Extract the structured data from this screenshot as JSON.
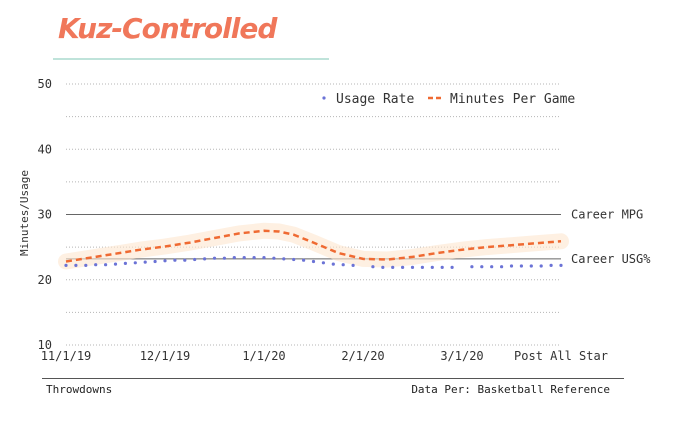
{
  "header": {
    "title": "Kuz-Controlled"
  },
  "footer": {
    "left": "Throwdowns",
    "right": "Data Per: Basketball Reference"
  },
  "colors": {
    "title": "#f0775a",
    "usage": "#6b73d6",
    "minutes": "#ef6a32",
    "reference": "#666666"
  },
  "chart_data": {
    "type": "line",
    "ylabel": "Minutes/Usage",
    "ylim": [
      10,
      50
    ],
    "yticks": [
      10,
      20,
      30,
      40,
      50
    ],
    "xlim": [
      0,
      10
    ],
    "xticks": [
      {
        "x": 0,
        "label": "11/1/19"
      },
      {
        "x": 2,
        "label": "12/1/19"
      },
      {
        "x": 4,
        "label": "1/1/20"
      },
      {
        "x": 6,
        "label": "2/1/20"
      },
      {
        "x": 8,
        "label": "3/1/20"
      },
      {
        "x": 10,
        "label": "Post All Star"
      }
    ],
    "legend_position": "top-right",
    "grid": true,
    "series": [
      {
        "name": "Usage Rate",
        "style": "dotted",
        "x": [
          0,
          0.2,
          0.4,
          0.6,
          0.8,
          1.0,
          1.2,
          1.4,
          1.6,
          1.8,
          2.0,
          2.2,
          2.4,
          2.6,
          2.8,
          3.0,
          3.2,
          3.4,
          3.6,
          3.8,
          4.0,
          4.2,
          4.4,
          4.6,
          4.8,
          5.0,
          5.2,
          5.4,
          5.6,
          5.8,
          6.2,
          6.4,
          6.6,
          6.8,
          7.0,
          7.2,
          7.4,
          7.6,
          7.8,
          8.2,
          8.4,
          8.6,
          8.8,
          9.0,
          9.2,
          9.4,
          9.6,
          9.8,
          10.0
        ],
        "values": [
          22.2,
          22.2,
          22.2,
          22.3,
          22.3,
          22.4,
          22.5,
          22.6,
          22.7,
          22.8,
          22.9,
          23.0,
          23.0,
          23.1,
          23.2,
          23.3,
          23.3,
          23.4,
          23.4,
          23.4,
          23.4,
          23.3,
          23.2,
          23.1,
          23.0,
          22.8,
          22.6,
          22.4,
          22.3,
          22.2,
          22.0,
          21.9,
          21.9,
          21.9,
          21.9,
          21.9,
          21.9,
          21.9,
          21.9,
          22.0,
          22.0,
          22.0,
          22.0,
          22.1,
          22.1,
          22.1,
          22.1,
          22.2,
          22.2
        ]
      },
      {
        "name": "Minutes Per Game",
        "style": "dashed",
        "x": [
          0,
          0.5,
          1,
          1.5,
          2,
          2.5,
          3,
          3.5,
          4,
          4.3,
          4.6,
          5,
          5.5,
          6,
          6.5,
          7,
          7.5,
          8,
          8.5,
          9,
          9.5,
          10
        ],
        "values": [
          22.8,
          23.4,
          24.0,
          24.6,
          25.1,
          25.7,
          26.4,
          27.1,
          27.5,
          27.4,
          26.9,
          25.7,
          24.1,
          23.2,
          23.1,
          23.5,
          24.1,
          24.6,
          25.0,
          25.3,
          25.6,
          25.9
        ]
      }
    ],
    "reference_lines": [
      {
        "label": "Career MPG",
        "value": 30
      },
      {
        "label": "Career USG%",
        "value": 23.2
      }
    ]
  }
}
